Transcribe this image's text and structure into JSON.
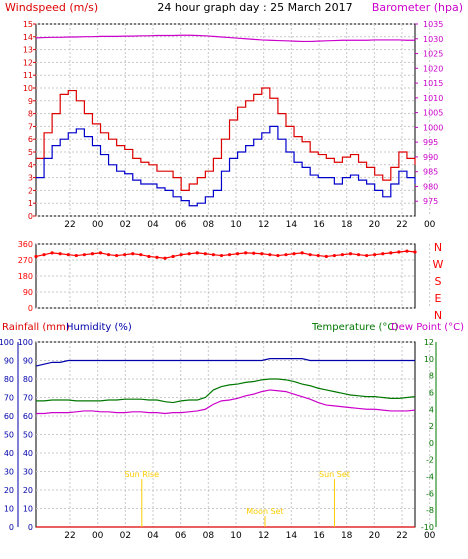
{
  "title": "24 hour graph day : 25 March 2017",
  "colors": {
    "background": "#ffffff",
    "plot_bg": "#ffffff",
    "border": "#000000",
    "grid": "#c8c8c8",
    "wind_avg": "#0000cc",
    "wind_gust": "#dd0000",
    "barometer": "#cc00cc",
    "direction": "#ff0000",
    "rain": "#dd0000",
    "humidity": "#0000aa",
    "temperature": "#007700",
    "dewpoint": "#cc00cc",
    "sun_moon": "#ffcc00"
  },
  "x_tick_labels": [
    "22",
    "00",
    "02",
    "04",
    "06",
    "08",
    "10",
    "12",
    "14",
    "16",
    "18",
    "20",
    "22",
    "00"
  ],
  "chart_data": [
    {
      "id": "wind",
      "type": "line",
      "labels": {
        "left": "Windspeed (m/s)",
        "right": "Barometer (hpa)"
      },
      "y_left": {
        "min": 0,
        "max": 15,
        "ticks": [
          "0",
          "1",
          "2",
          "3",
          "4",
          "5",
          "6",
          "7",
          "8",
          "9",
          "10",
          "11",
          "12",
          "13",
          "14",
          "15"
        ]
      },
      "y_right": {
        "min": 970,
        "max": 1035,
        "ticks": [
          "975",
          "980",
          "985",
          "990",
          "995",
          "1000",
          "1005",
          "1010",
          "1015",
          "1020",
          "1025",
          "1030",
          "1035"
        ]
      },
      "series": [
        {
          "name": "Windspeed (m/s)",
          "axis": "left",
          "values": [
            3.0,
            4.5,
            5.5,
            6.0,
            6.5,
            6.8,
            6.2,
            5.5,
            4.8,
            4.0,
            3.5,
            3.3,
            2.8,
            2.5,
            2.5,
            2.2,
            2.0,
            1.5,
            1.2,
            0.8,
            1.0,
            1.5,
            2.0,
            3.5,
            4.5,
            5.0,
            5.5,
            6.0,
            6.5,
            7.0,
            6.0,
            5.0,
            4.2,
            3.8,
            3.2,
            3.0,
            3.0,
            2.5,
            3.0,
            3.2,
            2.8,
            2.5,
            2.0,
            1.5,
            2.5,
            3.5,
            3.0,
            2.5
          ]
        },
        {
          "name": "Gust",
          "axis": "left",
          "values": [
            4.5,
            6.5,
            8.0,
            9.5,
            9.8,
            9.0,
            8.0,
            7.2,
            6.5,
            6.0,
            5.5,
            5.2,
            4.5,
            4.2,
            4.0,
            3.5,
            3.5,
            3.0,
            2.0,
            2.5,
            3.0,
            3.5,
            4.5,
            6.0,
            7.5,
            8.5,
            9.0,
            9.5,
            10.0,
            9.2,
            8.0,
            7.0,
            6.2,
            5.8,
            5.0,
            4.8,
            4.5,
            4.2,
            4.6,
            4.8,
            4.2,
            3.8,
            3.2,
            2.8,
            3.8,
            5.0,
            4.5,
            4.0
          ]
        },
        {
          "name": "Barometer (hpa)",
          "axis": "right",
          "values": [
            1030.3,
            1030.4,
            1030.5,
            1030.5,
            1030.6,
            1030.6,
            1030.7,
            1030.7,
            1030.8,
            1030.8,
            1030.8,
            1030.9,
            1030.9,
            1031.0,
            1031.0,
            1031.1,
            1031.1,
            1031.1,
            1031.2,
            1031.2,
            1031.1,
            1031.0,
            1030.8,
            1030.6,
            1030.4,
            1030.2,
            1030.0,
            1029.8,
            1029.6,
            1029.5,
            1029.4,
            1029.3,
            1029.2,
            1029.1,
            1029.1,
            1029.2,
            1029.3,
            1029.4,
            1029.5,
            1029.5,
            1029.5,
            1029.5,
            1029.6,
            1029.6,
            1029.6,
            1029.6,
            1029.5,
            1029.5
          ]
        }
      ]
    },
    {
      "id": "direction",
      "type": "scatter",
      "labels": {
        "right": [
          "N",
          "W",
          "S",
          "E",
          "N"
        ]
      },
      "y_left": {
        "min": 0,
        "max": 360,
        "ticks": [
          "0",
          "90",
          "180",
          "270",
          "360"
        ]
      },
      "series": [
        {
          "name": "Wind direction",
          "axis": "left",
          "values": [
            290,
            300,
            310,
            305,
            300,
            295,
            300,
            305,
            310,
            300,
            295,
            300,
            305,
            300,
            290,
            285,
            280,
            290,
            300,
            305,
            310,
            305,
            300,
            295,
            300,
            305,
            310,
            308,
            305,
            300,
            295,
            300,
            305,
            310,
            300,
            295,
            290,
            295,
            300,
            305,
            300,
            295,
            300,
            305,
            310,
            315,
            320,
            315
          ]
        }
      ]
    },
    {
      "id": "temp",
      "type": "line",
      "labels": {
        "left1": "Rainfall (mm)",
        "left2": "Humidity (%)",
        "right1": "Temperature (°C)",
        "right2": "Dew Point (°C)"
      },
      "y_left": {
        "min": 0,
        "max": 100,
        "ticks": [
          "0",
          "10",
          "20",
          "30",
          "40",
          "50",
          "60",
          "70",
          "80",
          "90",
          "100"
        ]
      },
      "y_rain": {
        "min": 0,
        "max": 100,
        "ticks": [
          "0",
          "10",
          "20",
          "30",
          "40",
          "50",
          "60",
          "70",
          "80",
          "90",
          "100"
        ]
      },
      "y_right": {
        "min": -10,
        "max": 12,
        "ticks": [
          "-10",
          "-8",
          "-6",
          "-4",
          "-2",
          "0",
          "2",
          "4",
          "6",
          "8",
          "10",
          "12"
        ]
      },
      "series": [
        {
          "name": "Humidity (%)",
          "axis": "left",
          "values": [
            87,
            88,
            89,
            89,
            90,
            90,
            90,
            90,
            90,
            90,
            90,
            90,
            90,
            90,
            90,
            90,
            90,
            90,
            90,
            90,
            90,
            90,
            90,
            90,
            90,
            90,
            90,
            90,
            90,
            91,
            91,
            91,
            91,
            91,
            90,
            90,
            90,
            90,
            90,
            90,
            90,
            90,
            90,
            90,
            90,
            90,
            90,
            90
          ]
        },
        {
          "name": "Temperature (°C)",
          "axis": "right",
          "values": [
            5.0,
            5.0,
            5.1,
            5.1,
            5.1,
            5.0,
            5.0,
            5.0,
            5.0,
            5.1,
            5.1,
            5.2,
            5.2,
            5.2,
            5.1,
            5.1,
            4.9,
            4.8,
            5.0,
            5.1,
            5.1,
            5.4,
            6.3,
            6.7,
            6.9,
            7.0,
            7.2,
            7.3,
            7.5,
            7.6,
            7.6,
            7.5,
            7.3,
            7.0,
            6.8,
            6.5,
            6.3,
            6.1,
            5.9,
            5.7,
            5.6,
            5.5,
            5.5,
            5.4,
            5.3,
            5.3,
            5.4,
            5.5
          ]
        },
        {
          "name": "Dew Point (°C)",
          "axis": "right",
          "values": [
            3.5,
            3.5,
            3.6,
            3.6,
            3.6,
            3.7,
            3.8,
            3.8,
            3.7,
            3.7,
            3.6,
            3.6,
            3.7,
            3.7,
            3.6,
            3.6,
            3.5,
            3.6,
            3.6,
            3.7,
            3.8,
            4.0,
            4.6,
            5.0,
            5.1,
            5.3,
            5.6,
            5.8,
            6.1,
            6.3,
            6.2,
            6.1,
            5.8,
            5.5,
            5.2,
            4.8,
            4.5,
            4.4,
            4.3,
            4.2,
            4.1,
            4.0,
            4.0,
            3.9,
            3.8,
            3.8,
            3.8,
            3.9
          ]
        },
        {
          "name": "Rainfall (mm)",
          "axis": "rain",
          "values": [
            0,
            0,
            0,
            0,
            0,
            0,
            0,
            0,
            0,
            0,
            0,
            0,
            0,
            0,
            0,
            0,
            0,
            0,
            0,
            0,
            0,
            0,
            0,
            0,
            0,
            0,
            0,
            0,
            0,
            0,
            0,
            0,
            0,
            0,
            0,
            0,
            0,
            0,
            0,
            0,
            0,
            0,
            0,
            0,
            0,
            0,
            0,
            0
          ]
        }
      ],
      "annotations": [
        {
          "text": "Sun Rise",
          "x_hour": 6.7,
          "level": 0.27
        },
        {
          "text": "Moon Set",
          "x_hour": 14.5,
          "level": 0.07
        },
        {
          "text": "Sun Set",
          "x_hour": 18.9,
          "level": 0.27
        }
      ]
    }
  ]
}
